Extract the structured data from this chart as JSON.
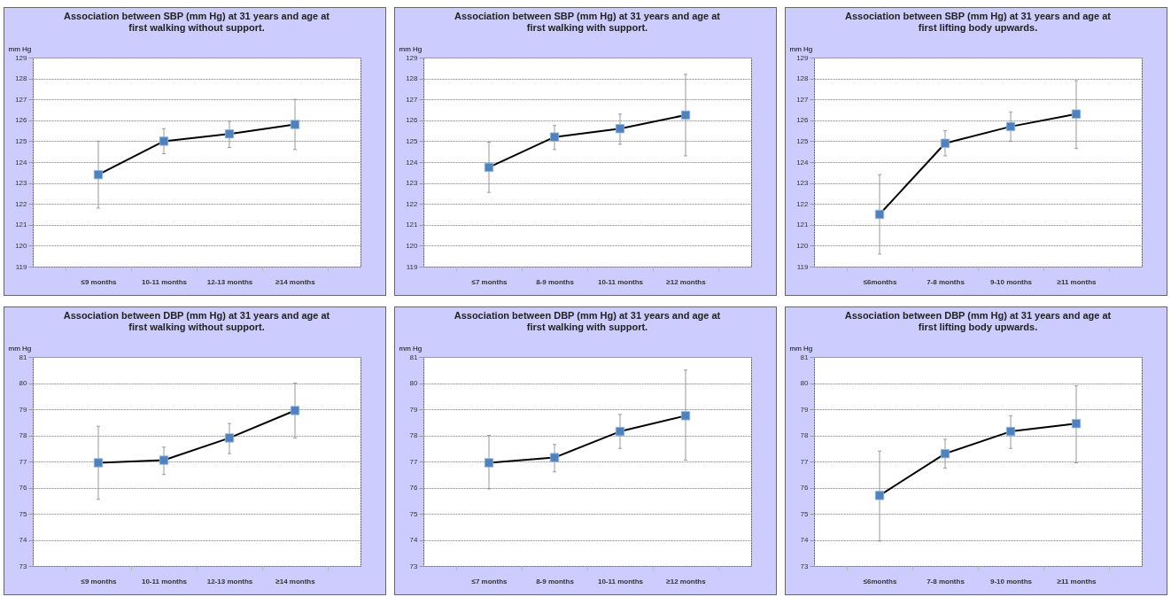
{
  "chart_data": [
    {
      "type": "line",
      "title": "Association between SBP (mm Hg) at 31 years and age at first walking without support.",
      "ylabel": "mm Hg",
      "categories": [
        "≤9 months",
        "10-11 months",
        "12-13 months",
        "≥14 months"
      ],
      "series": [
        {
          "color": "#4f81bd",
          "values": [
            123.4,
            125.0,
            125.35,
            125.8
          ],
          "errors": [
            [
              121.8,
              125.0
            ],
            [
              124.4,
              125.6
            ],
            [
              124.7,
              125.95
            ],
            [
              124.6,
              127.0
            ]
          ]
        }
      ],
      "ylim": [
        119,
        129
      ],
      "yticks": [
        119,
        120,
        121,
        122,
        123,
        124,
        125,
        126,
        127,
        128,
        129
      ],
      "grid": "y",
      "marker": "square"
    },
    {
      "type": "line",
      "title": "Association between SBP (mm Hg) at 31 years and age at first walking with support.",
      "ylabel": "mm Hg",
      "categories": [
        "≤7 months",
        "8-9 months",
        "10-11 months",
        "≥12 months"
      ],
      "series": [
        {
          "color": "#4f81bd",
          "values": [
            123.75,
            125.2,
            125.6,
            126.25
          ],
          "errors": [
            [
              122.55,
              124.95
            ],
            [
              124.6,
              125.75
            ],
            [
              124.85,
              126.3
            ],
            [
              124.3,
              128.2
            ]
          ]
        }
      ],
      "ylim": [
        119,
        129
      ],
      "yticks": [
        119,
        120,
        121,
        122,
        123,
        124,
        125,
        126,
        127,
        128,
        129
      ],
      "grid": "y",
      "marker": "square"
    },
    {
      "type": "line",
      "title": "Association between SBP (mm Hg) at 31 years and age at first lifting body upwards.",
      "ylabel": "mm Hg",
      "categories": [
        "≤6months",
        "7-8 months",
        "9-10 months",
        "≥11 months"
      ],
      "series": [
        {
          "color": "#4f81bd",
          "values": [
            121.5,
            124.9,
            125.7,
            126.3
          ],
          "errors": [
            [
              119.6,
              123.4
            ],
            [
              124.3,
              125.5
            ],
            [
              125.0,
              126.4
            ],
            [
              124.65,
              127.9
            ]
          ]
        }
      ],
      "ylim": [
        119,
        129
      ],
      "yticks": [
        119,
        120,
        121,
        122,
        123,
        124,
        125,
        126,
        127,
        128,
        129
      ],
      "grid": "y",
      "marker": "square"
    },
    {
      "type": "line",
      "title": "Association between DBP (mm Hg) at 31 years and age at first walking without support.",
      "ylabel": "mm Hg",
      "categories": [
        "≤9 months",
        "10-11 months",
        "12-13 months",
        "≥14 months"
      ],
      "series": [
        {
          "color": "#4f81bd",
          "values": [
            76.95,
            77.05,
            77.9,
            78.95
          ],
          "errors": [
            [
              75.55,
              78.35
            ],
            [
              76.5,
              77.55
            ],
            [
              77.3,
              78.45
            ],
            [
              77.9,
              80.0
            ]
          ]
        }
      ],
      "ylim": [
        73,
        81
      ],
      "yticks": [
        73,
        74,
        75,
        76,
        77,
        78,
        79,
        80,
        81
      ],
      "grid": "y",
      "marker": "square"
    },
    {
      "type": "line",
      "title": "Association between DBP (mm Hg) at 31 years and age at first walking with support.",
      "ylabel": "mm Hg",
      "categories": [
        "≤7 months",
        "8-9 months",
        "10-11 months",
        "≥12 months"
      ],
      "series": [
        {
          "color": "#4f81bd",
          "values": [
            76.95,
            77.15,
            78.15,
            78.75
          ],
          "errors": [
            [
              75.95,
              78.0
            ],
            [
              76.6,
              77.65
            ],
            [
              77.5,
              78.8
            ],
            [
              77.05,
              80.5
            ]
          ]
        }
      ],
      "ylim": [
        73,
        81
      ],
      "yticks": [
        73,
        74,
        75,
        76,
        77,
        78,
        79,
        80,
        81
      ],
      "grid": "y",
      "marker": "square"
    },
    {
      "type": "line",
      "title": "Association between DBP (mm Hg) at 31 years and age at first lifting body upwards.",
      "ylabel": "mm Hg",
      "categories": [
        "≤6months",
        "7-8 months",
        "9-10 months",
        "≥11 months"
      ],
      "series": [
        {
          "color": "#4f81bd",
          "values": [
            75.7,
            77.3,
            78.15,
            78.45
          ],
          "errors": [
            [
              73.95,
              77.4
            ],
            [
              76.75,
              77.85
            ],
            [
              77.5,
              78.75
            ],
            [
              76.95,
              79.9
            ]
          ]
        }
      ],
      "ylim": [
        73,
        81
      ],
      "yticks": [
        73,
        74,
        75,
        76,
        77,
        78,
        79,
        80,
        81
      ],
      "grid": "y",
      "marker": "square"
    }
  ]
}
